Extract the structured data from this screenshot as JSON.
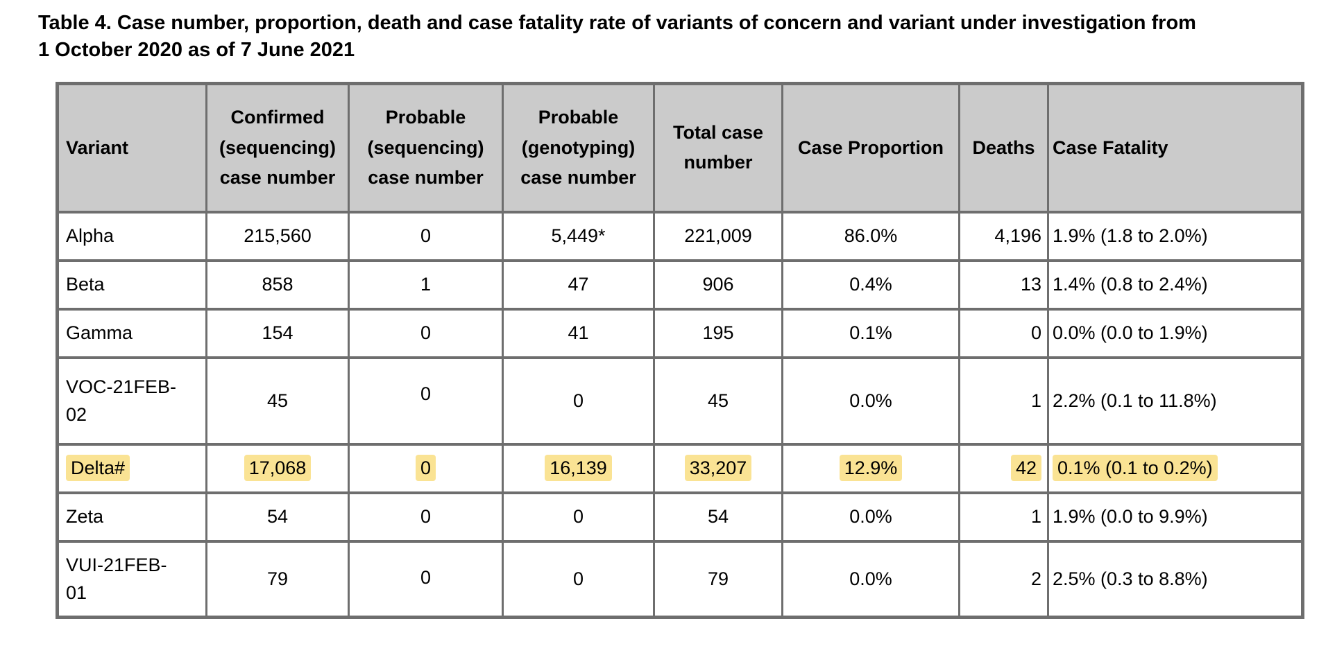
{
  "title": {
    "line1": "Table 4. Case number, proportion, death and case fatality rate of variants of concern and variant under investigation from",
    "line2": "1 October 2020 as of 7 June 2021"
  },
  "colors": {
    "hl": "#fae394",
    "hdr": "#cbcbcb",
    "bd": "#6e6e6e"
  },
  "table": {
    "headers": [
      "Variant",
      "Confirmed (sequencing) case number",
      "Probable (sequencing) case number",
      "Probable (genotyping) case number",
      "Total case number",
      "Case Proportion",
      "Deaths",
      "Case Fatality"
    ],
    "rows": [
      {
        "variant": "Alpha",
        "confirmed": "215,560",
        "probable_seq": "0",
        "probable_geno": "5,449*",
        "total": "221,009",
        "proportion": "86.0%",
        "deaths": "4,196",
        "fatality": "1.9% (1.8 to 2.0%)"
      },
      {
        "variant": "Beta",
        "confirmed": "858",
        "probable_seq": "1",
        "probable_geno": "47",
        "total": "906",
        "proportion": "0.4%",
        "deaths": "13",
        "fatality": "1.4% (0.8 to 2.4%)"
      },
      {
        "variant": "Gamma",
        "confirmed": "154",
        "probable_seq": "0",
        "probable_geno": "41",
        "total": "195",
        "proportion": "0.1%",
        "deaths": "0",
        "fatality": "0.0% (0.0 to 1.9%)"
      },
      {
        "variant": "VOC-21FEB-02",
        "confirmed": "45",
        "probable_seq": "0",
        "probable_geno": "0",
        "total": "45",
        "proportion": "0.0%",
        "deaths": "1",
        "fatality": "2.2% (0.1 to 11.8%)"
      },
      {
        "variant": "Delta#",
        "confirmed": "17,068",
        "probable_seq": "0",
        "probable_geno": "16,139",
        "total": "33,207",
        "proportion": "12.9%",
        "deaths": "42",
        "fatality": "0.1% (0.1 to 0.2%)",
        "highlighted": true
      },
      {
        "variant": "Zeta",
        "confirmed": "54",
        "probable_seq": "0",
        "probable_geno": "0",
        "total": "54",
        "proportion": "0.0%",
        "deaths": "1",
        "fatality": "1.9% (0.0 to 9.9%)"
      },
      {
        "variant": "VUI-21FEB-01",
        "confirmed": "79",
        "probable_seq": "0",
        "probable_geno": "0",
        "total": "79",
        "proportion": "0.0%",
        "deaths": "2",
        "fatality": "2.5% (0.3 to 8.8%)"
      }
    ]
  }
}
